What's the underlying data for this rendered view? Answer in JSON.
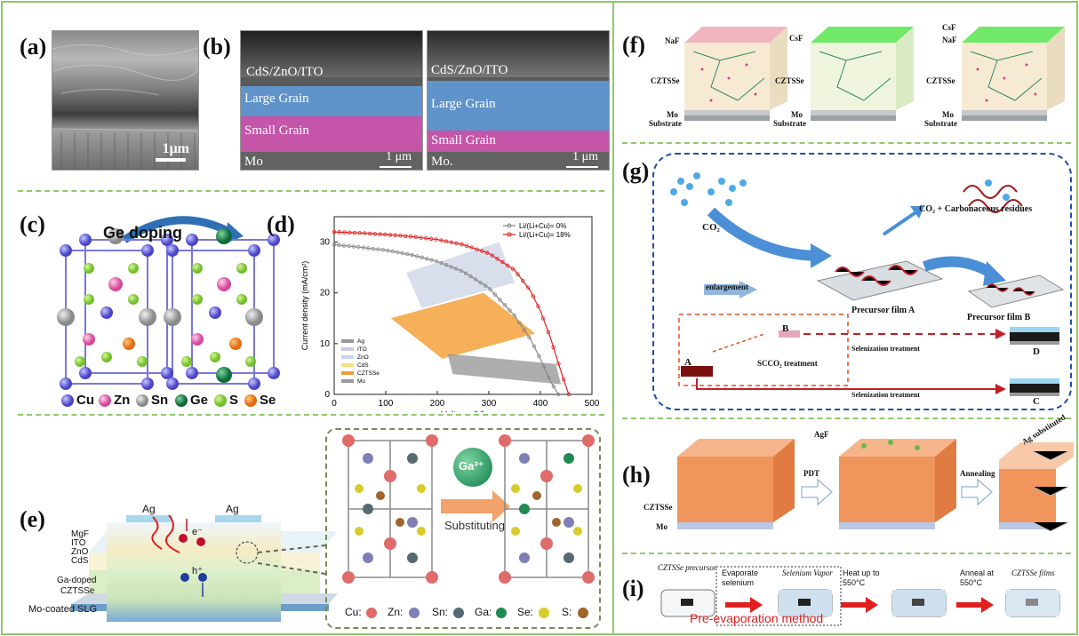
{
  "panels": {
    "a": {
      "label": "(a)",
      "scale": "1μm"
    },
    "b": {
      "label": "(b)",
      "left": {
        "top": "CdS/ZnO/ITO",
        "mid": "Large Grain",
        "low": "Small Grain",
        "bottom": "Mo",
        "scale": "1 μm"
      },
      "right": {
        "top": "CdS/ZnO/ITO",
        "mid": "Large Grain",
        "low": "Small Grain",
        "bottom": "Mo.",
        "scale": "1 μm"
      }
    },
    "c": {
      "label": "(c)",
      "arrow_text": "Ge doping",
      "legend": [
        "Cu",
        "Zn",
        "Sn",
        "Ge",
        "S",
        "Se"
      ]
    },
    "d": {
      "label": "(d)"
    },
    "e": {
      "label": "(e)",
      "layers": [
        "MgF",
        "ITO",
        "ZnO",
        "CdS",
        "Ga-doped",
        "CZTSSe",
        "Mo-coated SLG"
      ],
      "ag": "Ag",
      "eminus": "e⁻",
      "hplus": "h⁺",
      "ion": "Ga³⁺",
      "substituting": "Substituting",
      "legend": [
        "Cu:",
        "Zn:",
        "Sn:",
        "Ga:",
        "Se:",
        "S:"
      ]
    },
    "f": {
      "label": "(f)",
      "b1": [
        "NaF",
        "CZTSSe",
        "Mo",
        "Substrate"
      ],
      "b2": [
        "CsF",
        "CZTSSe",
        "Mo",
        "Substrate"
      ],
      "b3": [
        "CsF",
        "NaF",
        "CZTSSe",
        "Mo",
        "Substrate"
      ]
    },
    "g": {
      "label": "(g)",
      "co2": "CO₂",
      "residues": "CO₂ + Carbonaceous residues",
      "film_a": "Precursor film A",
      "film_b": "Precursor film B",
      "enlargement": "enlargement",
      "scco2": "SCCO₂ treatment",
      "sel1": "Selenization treatment",
      "sel2": "Selenization treatment",
      "A": "A",
      "B": "B",
      "C": "C",
      "D": "D"
    },
    "h": {
      "label": "(h)",
      "czts": "CZTSSe",
      "mo": "Mo",
      "agf": "AgF",
      "pdt": "PDT",
      "annealing": "Annealing",
      "ag_sub": "Ag substituted"
    },
    "i": {
      "label": "(i)",
      "precursor": "CZTSSe precursor",
      "evaporate": "Evaporate selenium",
      "vapor": "Selenium Vapor",
      "heat": "Heat up to 550°C",
      "anneal": "Anneal at 550°C",
      "films": "CZTSSe films",
      "method": "Pre-evaporation method"
    }
  },
  "chart_data": {
    "type": "line",
    "xlabel": "Voltage (V)",
    "ylabel": "Current density (mA/cm²)",
    "xlim": [
      0,
      500
    ],
    "ylim": [
      0,
      35
    ],
    "xticks": [
      0,
      100,
      200,
      300,
      400,
      500
    ],
    "yticks": [
      0,
      10,
      20,
      30
    ],
    "legend_position": "top-right",
    "series": [
      {
        "name": "Li/(Li+Cu)= 0%",
        "color": "#888888",
        "x": [
          0,
          50,
          100,
          150,
          200,
          250,
          300,
          350,
          380,
          400,
          420,
          435
        ],
        "y": [
          29.5,
          29.0,
          28.4,
          27.5,
          26.2,
          24.2,
          21.0,
          15.5,
          11.0,
          7.0,
          2.5,
          0
        ]
      },
      {
        "name": "Li/(Li+Cu)= 18%",
        "color": "#e02020",
        "x": [
          0,
          50,
          100,
          150,
          200,
          250,
          300,
          350,
          380,
          400,
          420,
          440,
          455
        ],
        "y": [
          32.0,
          31.8,
          31.5,
          31.1,
          30.5,
          29.5,
          27.8,
          24.5,
          20.5,
          16.5,
          11.0,
          4.5,
          0
        ]
      }
    ],
    "inset_legend": [
      "Ag",
      "ITO",
      "ZnO",
      "CdS",
      "CZTSSe",
      "Mo"
    ],
    "inset_colors": [
      "#999999",
      "#c9c9e6",
      "#c9d6f0",
      "#f3e27a",
      "#f29a3a",
      "#9a9a9a"
    ]
  },
  "colors": {
    "divider": "#8fca6b",
    "blue_frame": "#1e4fa8",
    "red": "#e02020"
  }
}
